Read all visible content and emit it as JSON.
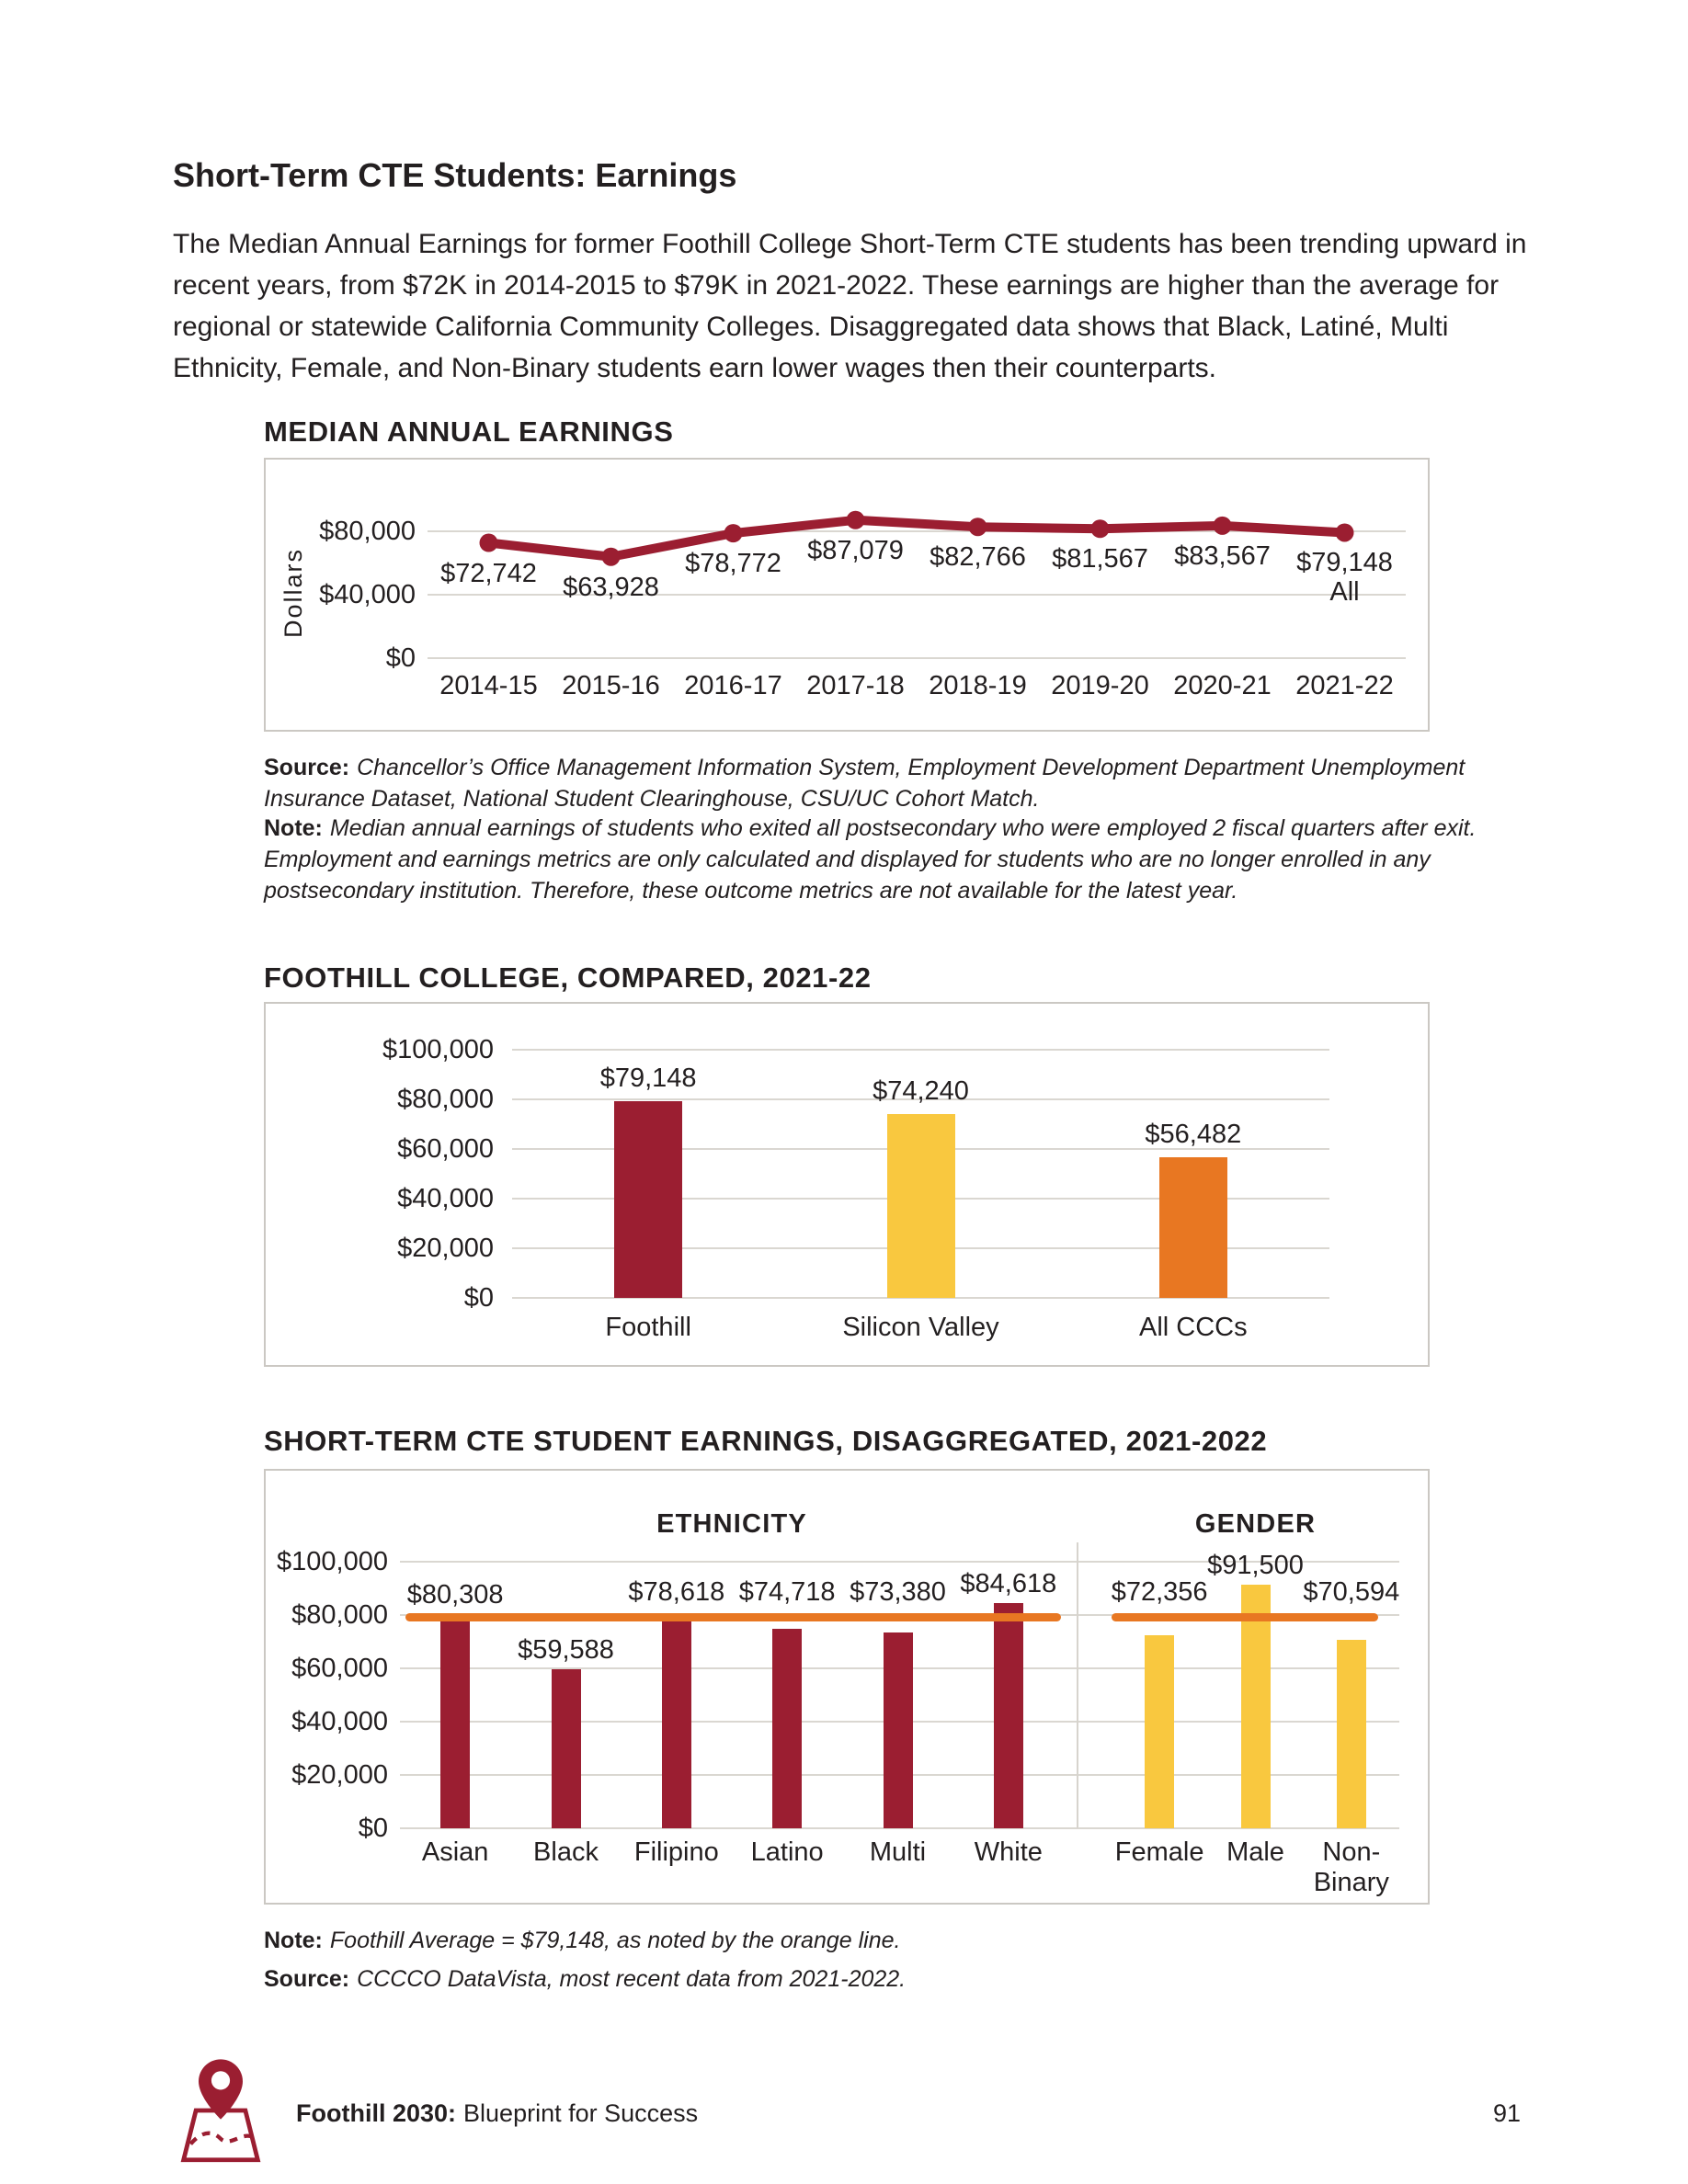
{
  "page_title": "Short-Term CTE Students: Earnings",
  "intro": "The Median Annual Earnings for former Foothill College Short-Term CTE students has been trending upward in recent years, from $72K in 2014-2015 to $79K in 2021-2022. These earnings are higher than the average for regional or statewide California Community Colleges. Disaggregated data shows that Black, Latiné, Multi Ethnicity, Female, and Non-Binary students earn lower wages then their counterparts.",
  "colors": {
    "crimson": "#9B1E31",
    "yellow": "#F9C83F",
    "orange": "#E87722",
    "text": "#231F20",
    "gridline": "#DAD7D1"
  },
  "chart_data": [
    {
      "type": "line",
      "title": "MEDIAN ANNUAL EARNINGS",
      "ylabel": "Dollars",
      "categories": [
        "2014-15",
        "2015-16",
        "2016-17",
        "2017-18",
        "2018-19",
        "2019-20",
        "2020-21",
        "2021-22"
      ],
      "values": [
        72742,
        63928,
        78772,
        87079,
        82766,
        81567,
        83567,
        79148
      ],
      "value_labels": [
        "$72,742",
        "$63,928",
        "$78,772",
        "$87,079",
        "$82,766",
        "$81,567",
        "$83,567",
        "$79,148"
      ],
      "last_point_note": "All",
      "line_color": "#9B1E31",
      "ylim": [
        0,
        100000
      ],
      "ytick_values": [
        0,
        40000,
        80000
      ],
      "ytick_labels": [
        "$0",
        "$40,000",
        "$80,000"
      ],
      "grid": true,
      "legend": "none",
      "source_label": "Source:",
      "source_text": "Chancellor’s Office Management Information System, Employment Development Department Unemployment Insurance Dataset, National Student Clearinghouse, CSU/UC Cohort Match.",
      "note_label": "Note:",
      "note_text": "Median annual earnings of students who exited all postsecondary who were employed 2 fiscal quarters after exit. Employment and earnings metrics are only calculated and displayed for students who are no longer enrolled in any postsecondary institution. Therefore, these outcome metrics are not available for the latest year."
    },
    {
      "type": "bar",
      "title": "FOOTHILL COLLEGE, COMPARED, 2021-22",
      "categories": [
        "Foothill",
        "Silicon Valley",
        "All CCCs"
      ],
      "values": [
        79148,
        74240,
        56482
      ],
      "value_labels": [
        "$79,148",
        "$74,240",
        "$56,482"
      ],
      "bar_colors": [
        "#9B1E31",
        "#F9C83F",
        "#E87722"
      ],
      "ylim": [
        0,
        100000
      ],
      "ytick_values": [
        0,
        20000,
        40000,
        60000,
        80000,
        100000
      ],
      "ytick_labels": [
        "$0",
        "$20,000",
        "$40,000",
        "$60,000",
        "$80,000",
        "$100,000"
      ],
      "grid": true,
      "legend": "none"
    },
    {
      "type": "grouped-bar",
      "title": "SHORT-TERM CTE STUDENT EARNINGS, DISAGGREGATED, 2021-2022",
      "groups": [
        {
          "name": "ETHNICITY",
          "bar_color": "#9B1E31",
          "categories": [
            "Asian",
            "Black",
            "Filipino",
            "Latino",
            "Multi",
            "White"
          ],
          "values": [
            80308,
            59588,
            78618,
            74718,
            73380,
            84618
          ],
          "value_labels": [
            "$80,308",
            "$59,588",
            "$78,618",
            "$74,718",
            "$73,380",
            "$84,618"
          ]
        },
        {
          "name": "GENDER",
          "bar_color": "#F9C83F",
          "categories": [
            "Female",
            "Male",
            "Non-Binary"
          ],
          "values": [
            72356,
            91500,
            70594
          ],
          "value_labels": [
            "$72,356",
            "$91,500",
            "$70,594"
          ]
        }
      ],
      "average_line": {
        "label": "Foothill Average",
        "value": 79148,
        "color": "#E87722"
      },
      "ylim": [
        0,
        100000
      ],
      "ytick_values": [
        0,
        20000,
        40000,
        60000,
        80000,
        100000
      ],
      "ytick_labels": [
        "$0",
        "$20,000",
        "$40,000",
        "$60,000",
        "$80,000",
        "$100,000"
      ],
      "grid": true,
      "legend": "none",
      "note_label": "Note:",
      "note_text": "Foothill Average =  $79,148, as noted by the orange line.",
      "source_label": "Source:",
      "source_text": "CCCCO DataVista, most recent data from 2021-2022."
    }
  ],
  "footer": {
    "brand_bold": "Foothill 2030:",
    "brand_rest": "Blueprint for Success",
    "page_number": "91"
  }
}
